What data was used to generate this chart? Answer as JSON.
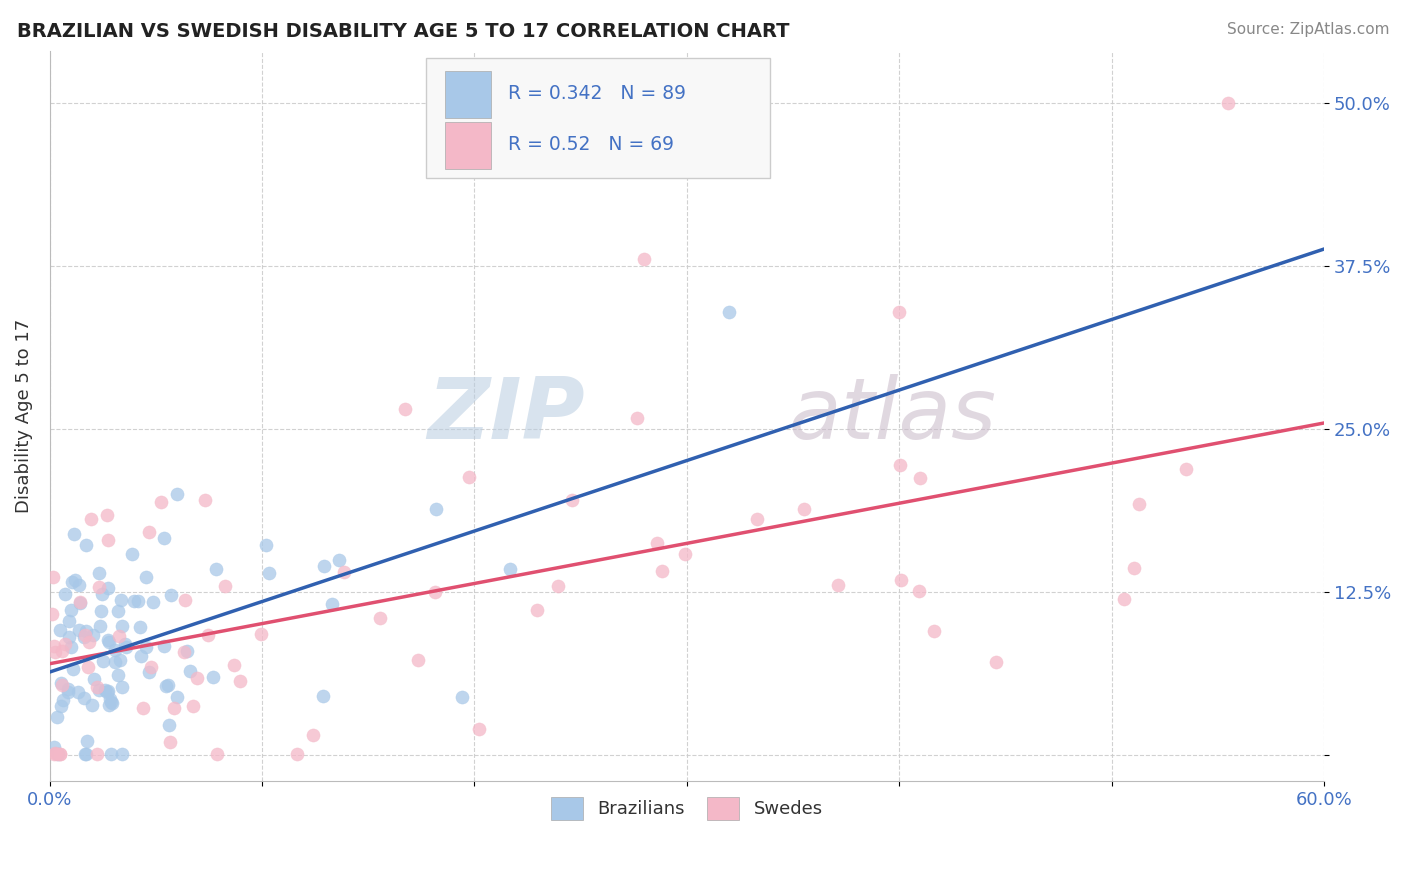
{
  "title": "BRAZILIAN VS SWEDISH DISABILITY AGE 5 TO 17 CORRELATION CHART",
  "source": "Source: ZipAtlas.com",
  "ylabel": "Disability Age 5 to 17",
  "xlim": [
    0.0,
    0.6
  ],
  "ylim": [
    -0.02,
    0.54
  ],
  "xticks": [
    0.0,
    0.1,
    0.2,
    0.3,
    0.4,
    0.5,
    0.6
  ],
  "yticks": [
    0.0,
    0.125,
    0.25,
    0.375,
    0.5
  ],
  "ytick_labels": [
    "",
    "12.5%",
    "25.0%",
    "37.5%",
    "50.0%"
  ],
  "brazil_R": 0.342,
  "brazil_N": 89,
  "sweden_R": 0.52,
  "sweden_N": 69,
  "brazil_color": "#a8c8e8",
  "sweden_color": "#f4b8c8",
  "brazil_line_color": "#3060b0",
  "sweden_line_color": "#e05070",
  "tick_color": "#4472C4",
  "title_color": "#222222",
  "source_color": "#888888",
  "watermark_zip_color": "#c8d8ea",
  "watermark_atlas_color": "#d8c8d8",
  "grid_color": "#cccccc",
  "brazil_seed": 42,
  "sweden_seed": 77
}
